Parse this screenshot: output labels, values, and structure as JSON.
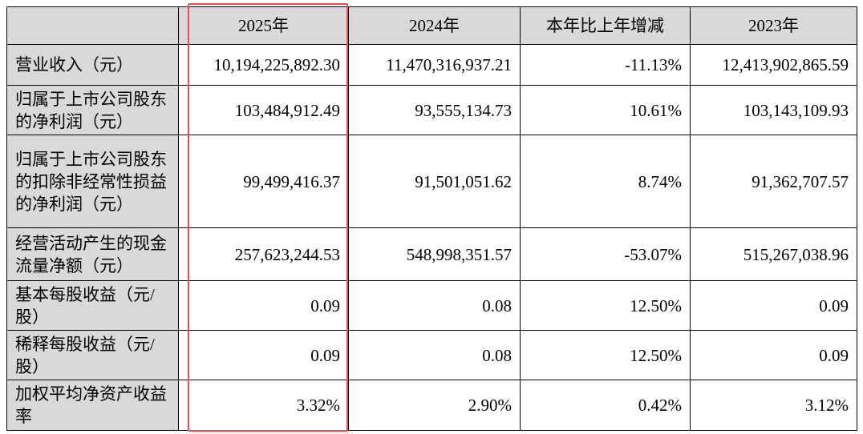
{
  "table": {
    "header": [
      "",
      "2025年",
      "2024年",
      "本年比上年增减",
      "2023年"
    ],
    "rows": [
      [
        "营业收入（元）",
        "10,194,225,892.30",
        "11,470,316,937.21",
        "-11.13%",
        "12,413,902,865.59"
      ],
      [
        "归属于上市公司股东的净利润（元）",
        "103,484,912.49",
        "93,555,134.73",
        "10.61%",
        "103,143,109.93"
      ],
      [
        "归属于上市公司股东的扣除非经常性损益的净利润（元）",
        "99,499,416.37",
        "91,501,051.62",
        "8.74%",
        "91,362,707.57"
      ],
      [
        "经营活动产生的现金流量净额（元）",
        "257,623,244.53",
        "548,998,351.57",
        "-53.07%",
        "515,267,038.96"
      ],
      [
        "基本每股收益（元/股）",
        "0.09",
        "0.08",
        "12.50%",
        "0.09"
      ],
      [
        "稀释每股收益（元/股）",
        "0.09",
        "0.08",
        "12.50%",
        "0.09"
      ],
      [
        "加权平均净资产收益率",
        "3.32%",
        "2.90%",
        "0.42%",
        "3.12%"
      ]
    ]
  }
}
